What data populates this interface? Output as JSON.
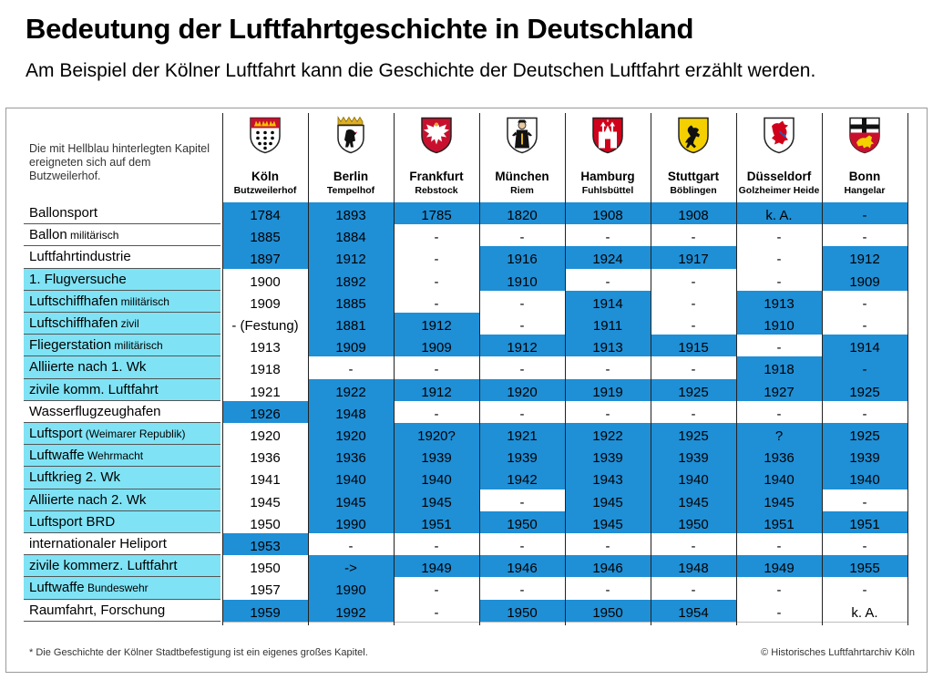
{
  "title": "Bedeutung der Luftfahrtgeschichte in Deutschland",
  "subtitle": "Am Beispiel der Kölner Luftfahrt kann die Geschichte der Deutschen Luftfahrt erzählt werden.",
  "note": "Die mit Hellblau hinterlegten Kapitel ereigneten sich auf dem Butzweilerhof.",
  "footnote": "* Die Geschichte der Kölner Stadtbefestigung ist ein eigenes großes Kapitel.",
  "copyright": "© Historisches Luftfahrtarchiv Köln",
  "colors": {
    "dark_blue": "#1f8fd6",
    "light_blue": "#7fe3f5",
    "white": "#ffffff"
  },
  "chart_data": {
    "type": "table",
    "columns": [
      {
        "city": "Köln",
        "site": "Butzweilerhof",
        "crest": "koeln-crest"
      },
      {
        "city": "Berlin",
        "site": "Tempelhof",
        "crest": "berlin-crest"
      },
      {
        "city": "Frankfurt",
        "site": "Rebstock",
        "crest": "frankfurt-crest"
      },
      {
        "city": "München",
        "site": "Riem",
        "crest": "muenchen-crest"
      },
      {
        "city": "Hamburg",
        "site": "Fuhlsbüttel",
        "crest": "hamburg-crest"
      },
      {
        "city": "Stuttgart",
        "site": "Böblingen",
        "crest": "stuttgart-crest"
      },
      {
        "city": "Düsseldorf",
        "site": "Golzheimer Heide",
        "crest": "duesseldorf-crest"
      },
      {
        "city": "Bonn",
        "site": "Hangelar",
        "crest": "bonn-crest"
      }
    ],
    "rows": [
      {
        "label": "Ballonsport",
        "suffix": "",
        "butzweilerhof": false,
        "values": [
          "1784",
          "1893",
          "1785",
          "1820",
          "1908",
          "1908",
          "k. A.",
          "-"
        ],
        "highlight": [
          1,
          1,
          1,
          1,
          1,
          1,
          1,
          1
        ]
      },
      {
        "label": "Ballon",
        "suffix": "militärisch",
        "butzweilerhof": false,
        "values": [
          "1885",
          "1884",
          "-",
          "-",
          "-",
          "-",
          "-",
          "-"
        ],
        "highlight": [
          1,
          1,
          0,
          0,
          0,
          0,
          0,
          0
        ]
      },
      {
        "label": "Luftfahrtindustrie",
        "suffix": "",
        "butzweilerhof": false,
        "values": [
          "1897",
          "1912",
          "-",
          "1916",
          "1924",
          "1917",
          "-",
          "1912"
        ],
        "highlight": [
          1,
          1,
          0,
          1,
          1,
          1,
          0,
          1
        ]
      },
      {
        "label": "1. Flugversuche",
        "suffix": "",
        "butzweilerhof": true,
        "values": [
          "1900",
          "1892",
          "-",
          "1910",
          "-",
          "-",
          "-",
          "1909"
        ],
        "highlight": [
          0,
          1,
          0,
          1,
          0,
          0,
          0,
          1
        ]
      },
      {
        "label": "Luftschiffhafen",
        "suffix": "militärisch",
        "butzweilerhof": true,
        "values": [
          "1909",
          "1885",
          "-",
          "-",
          "1914",
          "-",
          "1913",
          "-"
        ],
        "highlight": [
          0,
          1,
          0,
          0,
          1,
          0,
          1,
          0
        ]
      },
      {
        "label": "Luftschiffhafen",
        "suffix": "zivil",
        "butzweilerhof": true,
        "values": [
          "- (Festung)",
          "1881",
          "1912",
          "-",
          "1911",
          "-",
          "1910",
          "-"
        ],
        "highlight": [
          0,
          1,
          1,
          0,
          1,
          0,
          1,
          0
        ]
      },
      {
        "label": "Fliegerstation",
        "suffix": "militärisch",
        "butzweilerhof": true,
        "values": [
          "1913",
          "1909",
          "1909",
          "1912",
          "1913",
          "1915",
          "-",
          "1914"
        ],
        "highlight": [
          0,
          1,
          1,
          1,
          1,
          1,
          0,
          1
        ]
      },
      {
        "label": "Alliierte nach 1. Wk",
        "suffix": "",
        "butzweilerhof": true,
        "values": [
          "1918",
          "-",
          "-",
          "-",
          "-",
          "-",
          "1918",
          "-"
        ],
        "highlight": [
          0,
          0,
          0,
          0,
          0,
          0,
          1,
          1
        ]
      },
      {
        "label": "zivile komm. Luftfahrt",
        "suffix": "",
        "butzweilerhof": true,
        "values": [
          "1921",
          "1922",
          "1912",
          "1920",
          "1919",
          "1925",
          "1927",
          "1925"
        ],
        "highlight": [
          0,
          1,
          1,
          1,
          1,
          1,
          1,
          1
        ]
      },
      {
        "label": "Wasserflugzeughafen",
        "suffix": "",
        "butzweilerhof": false,
        "values": [
          "1926",
          "1948",
          "-",
          "-",
          "-",
          "-",
          "-",
          "-"
        ],
        "highlight": [
          1,
          1,
          0,
          0,
          0,
          0,
          0,
          0
        ]
      },
      {
        "label": "Luftsport",
        "suffix": "(Weimarer Republik)",
        "butzweilerhof": true,
        "values": [
          "1920",
          "1920",
          "1920?",
          "1921",
          "1922",
          "1925",
          "?",
          "1925"
        ],
        "highlight": [
          0,
          1,
          1,
          1,
          1,
          1,
          1,
          1
        ]
      },
      {
        "label": "Luftwaffe",
        "suffix": "Wehrmacht",
        "butzweilerhof": true,
        "values": [
          "1936",
          "1936",
          "1939",
          "1939",
          "1939",
          "1939",
          "1936",
          "1939"
        ],
        "highlight": [
          0,
          1,
          1,
          1,
          1,
          1,
          1,
          1
        ]
      },
      {
        "label": "Luftkrieg 2. Wk",
        "suffix": "",
        "butzweilerhof": true,
        "values": [
          "1941",
          "1940",
          "1940",
          "1942",
          "1943",
          "1940",
          "1940",
          "1940"
        ],
        "highlight": [
          0,
          1,
          1,
          1,
          1,
          1,
          1,
          1
        ]
      },
      {
        "label": "Alliierte nach 2. Wk",
        "suffix": "",
        "butzweilerhof": true,
        "values": [
          "1945",
          "1945",
          "1945",
          "-",
          "1945",
          "1945",
          "1945",
          "-"
        ],
        "highlight": [
          0,
          1,
          1,
          0,
          1,
          1,
          1,
          0
        ]
      },
      {
        "label": "Luftsport BRD",
        "suffix": "",
        "butzweilerhof": true,
        "values": [
          "1950",
          "1990",
          "1951",
          "1950",
          "1945",
          "1950",
          "1951",
          "1951"
        ],
        "highlight": [
          0,
          1,
          1,
          1,
          1,
          1,
          1,
          1
        ]
      },
      {
        "label": "internationaler Heliport",
        "suffix": "",
        "butzweilerhof": false,
        "values": [
          "1953",
          "-",
          "-",
          "-",
          "-",
          "-",
          "-",
          "-"
        ],
        "highlight": [
          1,
          0,
          0,
          0,
          0,
          0,
          0,
          0
        ]
      },
      {
        "label": "zivile kommerz. Luftfahrt",
        "suffix": "",
        "butzweilerhof": true,
        "values": [
          "1950",
          "->",
          "1949",
          "1946",
          "1946",
          "1948",
          "1949",
          "1955"
        ],
        "highlight": [
          0,
          1,
          1,
          1,
          1,
          1,
          1,
          1
        ]
      },
      {
        "label": "Luftwaffe",
        "suffix": "Bundeswehr",
        "butzweilerhof": true,
        "values": [
          "1957",
          "1990",
          "-",
          "-",
          "-",
          "-",
          "-",
          "-"
        ],
        "highlight": [
          0,
          1,
          0,
          0,
          0,
          0,
          0,
          0
        ]
      },
      {
        "label": "Raumfahrt, Forschung",
        "suffix": "",
        "butzweilerhof": false,
        "values": [
          "1959",
          "1992",
          "-",
          "1950",
          "1950",
          "1954",
          "-",
          "k. A."
        ],
        "highlight": [
          1,
          1,
          0,
          1,
          1,
          1,
          0,
          0
        ]
      }
    ]
  }
}
